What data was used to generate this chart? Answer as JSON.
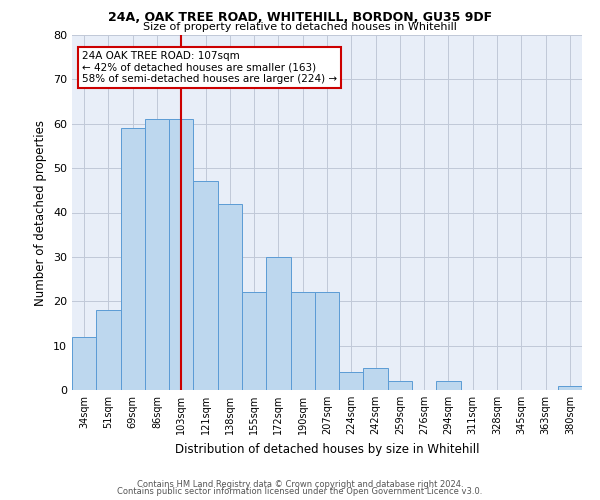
{
  "title1": "24A, OAK TREE ROAD, WHITEHILL, BORDON, GU35 9DF",
  "title2": "Size of property relative to detached houses in Whitehill",
  "xlabel": "Distribution of detached houses by size in Whitehill",
  "ylabel": "Number of detached properties",
  "categories": [
    "34sqm",
    "51sqm",
    "69sqm",
    "86sqm",
    "103sqm",
    "121sqm",
    "138sqm",
    "155sqm",
    "172sqm",
    "190sqm",
    "207sqm",
    "224sqm",
    "242sqm",
    "259sqm",
    "276sqm",
    "294sqm",
    "311sqm",
    "328sqm",
    "345sqm",
    "363sqm",
    "380sqm"
  ],
  "values": [
    12,
    18,
    59,
    61,
    61,
    47,
    42,
    22,
    30,
    22,
    22,
    4,
    5,
    2,
    0,
    2,
    0,
    0,
    0,
    0,
    1
  ],
  "bar_color": "#BDD7EE",
  "bar_edge_color": "#5B9BD5",
  "vline_x": 4,
  "vline_color": "#CC0000",
  "annotation_line1": "24A OAK TREE ROAD: 107sqm",
  "annotation_line2": "← 42% of detached houses are smaller (163)",
  "annotation_line3": "58% of semi-detached houses are larger (224) →",
  "annotation_box_color": "#CC0000",
  "ylim": [
    0,
    80
  ],
  "yticks": [
    0,
    10,
    20,
    30,
    40,
    50,
    60,
    70,
    80
  ],
  "grid_color": "#C0C8D8",
  "background_color": "#E8EEF8",
  "footer1": "Contains HM Land Registry data © Crown copyright and database right 2024.",
  "footer2": "Contains public sector information licensed under the Open Government Licence v3.0."
}
